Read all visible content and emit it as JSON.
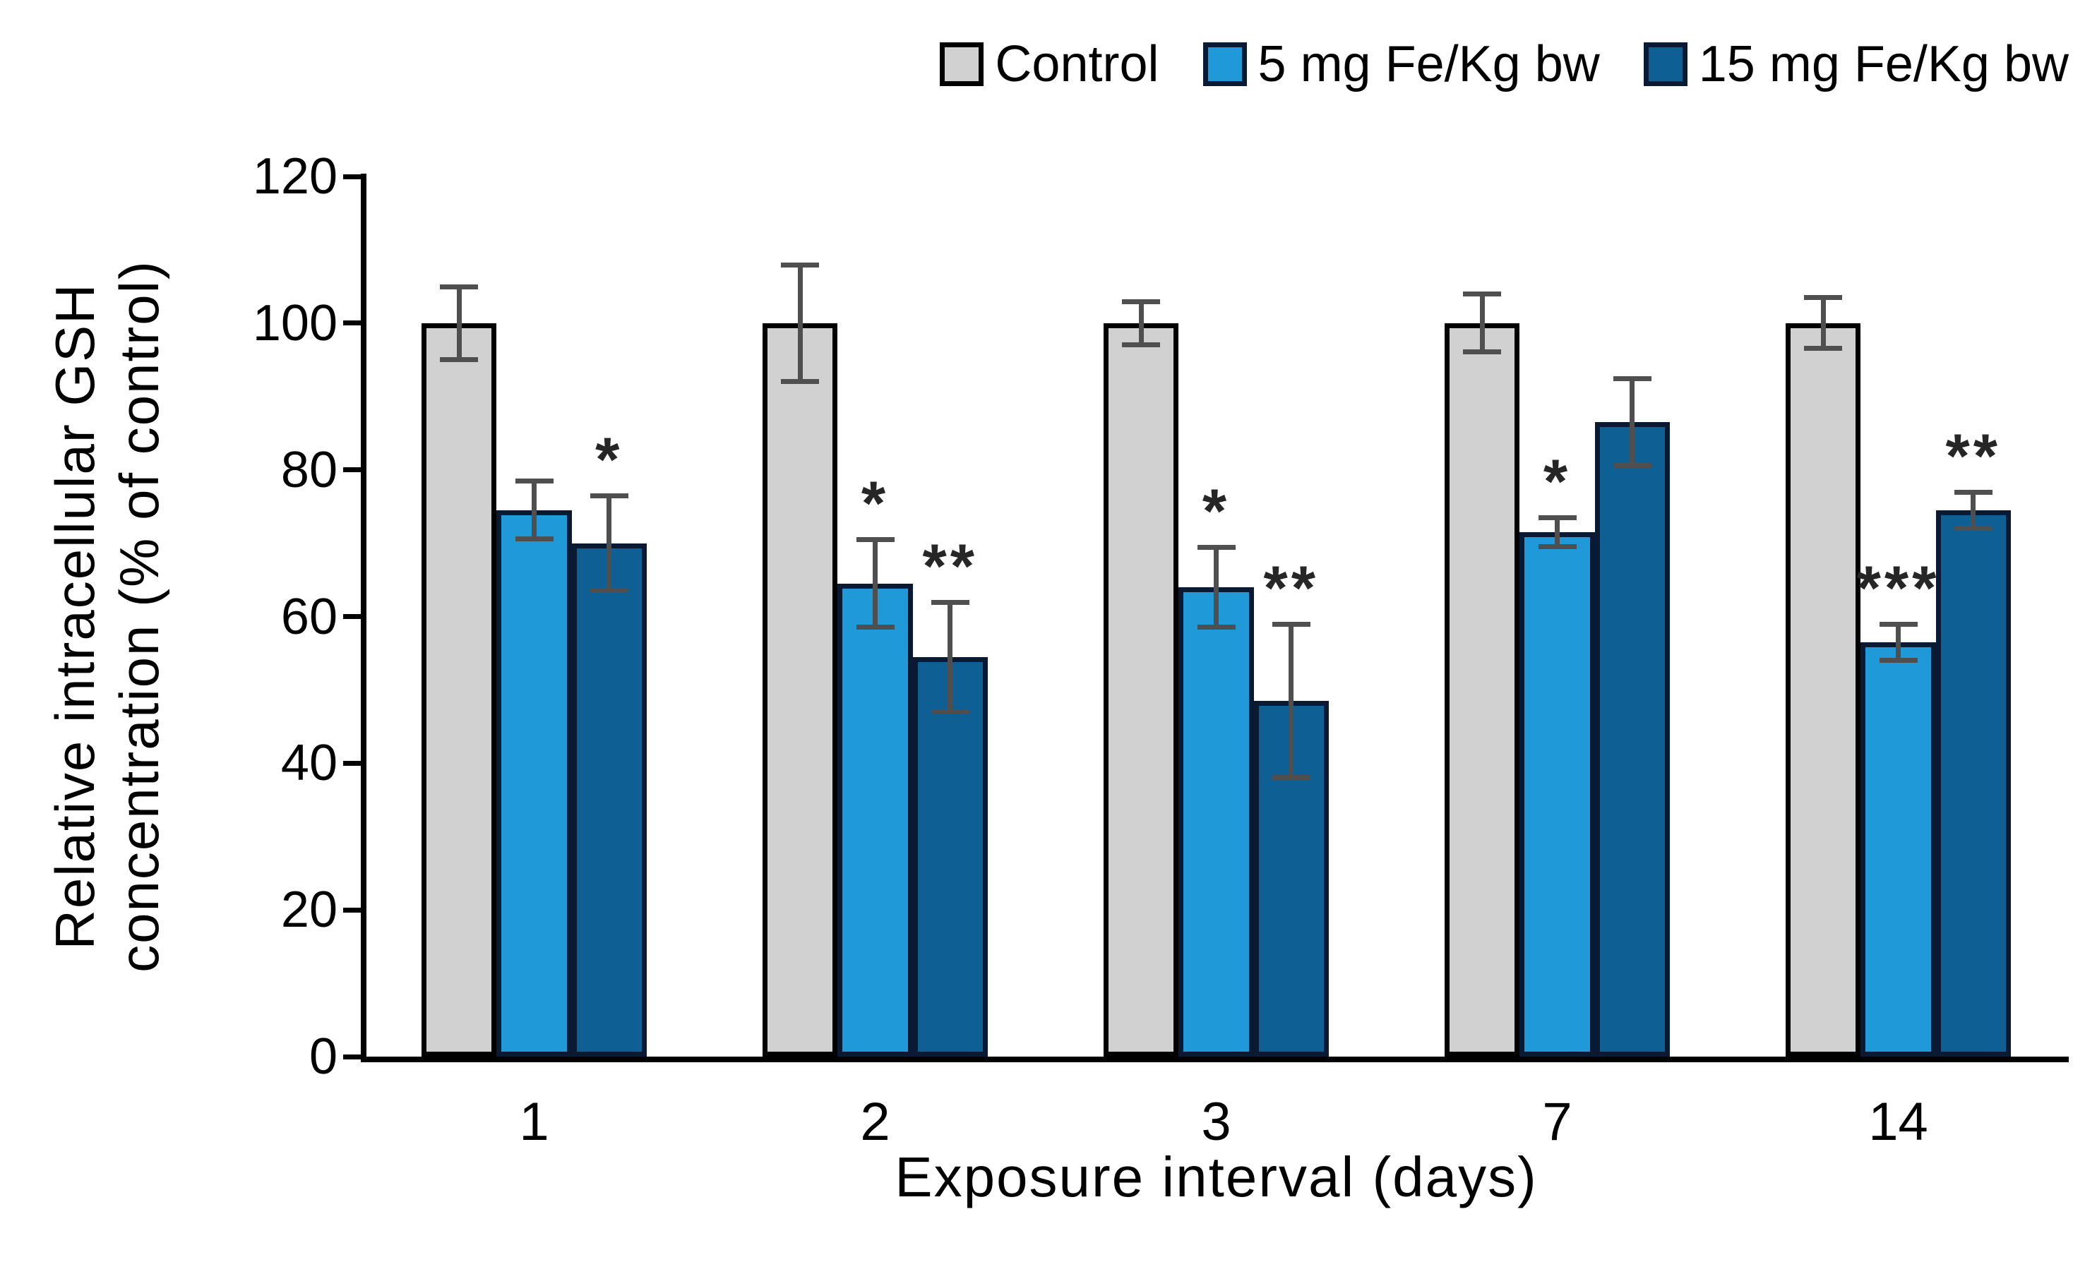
{
  "figure": {
    "background": "#ffffff"
  },
  "chart_data": {
    "type": "bar",
    "title": "",
    "categories": [
      "1",
      "2",
      "3",
      "7",
      "14"
    ],
    "xlabel": "Exposure interval  (days)",
    "ylabel_line1": "Relative  intracellular  GSH",
    "ylabel_line2": "concentration  (% of control)",
    "ylim": [
      0,
      120
    ],
    "yticks": [
      0,
      20,
      40,
      60,
      80,
      100,
      120
    ],
    "grid": false,
    "legend_position": "top-right",
    "series": [
      {
        "name": "Control",
        "fill": "#d1d1d1",
        "border": "#000000",
        "values": [
          100,
          100,
          100,
          100,
          100
        ],
        "errors": [
          5,
          8,
          3,
          4,
          3.5
        ],
        "significance": [
          "",
          "",
          "",
          "",
          ""
        ]
      },
      {
        "name": "5 mg Fe/Kg bw",
        "fill": "#2099d8",
        "border": "#0b1a33",
        "values": [
          74.5,
          64.5,
          64,
          71.5,
          56.5
        ],
        "errors": [
          4,
          6,
          5.5,
          2,
          2.5
        ],
        "significance": [
          "",
          "*",
          "*",
          "*",
          "***"
        ]
      },
      {
        "name": "15 mg Fe/Kg bw",
        "fill": "#0e5f94",
        "border": "#0b1a33",
        "values": [
          70,
          54.5,
          48.5,
          86.5,
          74.5
        ],
        "errors": [
          6.5,
          7.5,
          10.5,
          6,
          2.5
        ],
        "significance": [
          "*",
          "**",
          "**",
          "",
          "**"
        ]
      }
    ],
    "error_bar_color": "#4f4f4f",
    "significance_color": "#262626",
    "axis_color": "#000000"
  }
}
